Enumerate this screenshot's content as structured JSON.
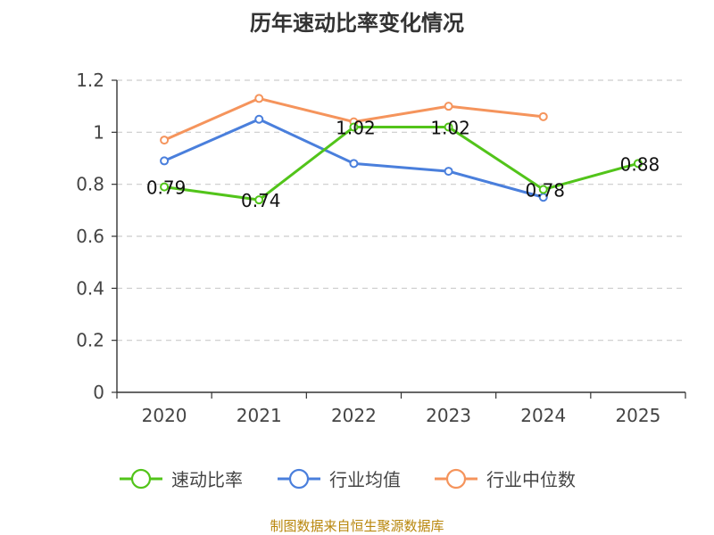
{
  "chart_data": {
    "type": "line",
    "title": "历年速动比率变化情况",
    "categories": [
      "2020",
      "2021",
      "2022",
      "2023",
      "2024",
      "2025"
    ],
    "y_ticks": [
      "0",
      "0.2",
      "0.4",
      "0.6",
      "0.8",
      "1",
      "1.2"
    ],
    "ylim": [
      0,
      1.2
    ],
    "grid": true,
    "legend_position": "bottom",
    "series": [
      {
        "name": "速动比率",
        "color": "#52c41a",
        "values": [
          0.79,
          0.74,
          1.02,
          1.02,
          0.78,
          0.88
        ],
        "show_labels": true,
        "labels": [
          "0.79",
          "0.74",
          "1.02",
          "1.02",
          "0.78",
          "0.88"
        ]
      },
      {
        "name": "行业均值",
        "color": "#4a7fdc",
        "values": [
          0.89,
          1.05,
          0.88,
          0.85,
          0.75,
          null
        ],
        "show_labels": false
      },
      {
        "name": "行业中位数",
        "color": "#f5945c",
        "values": [
          0.97,
          1.13,
          1.04,
          1.1,
          1.06,
          null
        ],
        "show_labels": false
      }
    ]
  },
  "source_note": "制图数据来自恒生聚源数据库"
}
